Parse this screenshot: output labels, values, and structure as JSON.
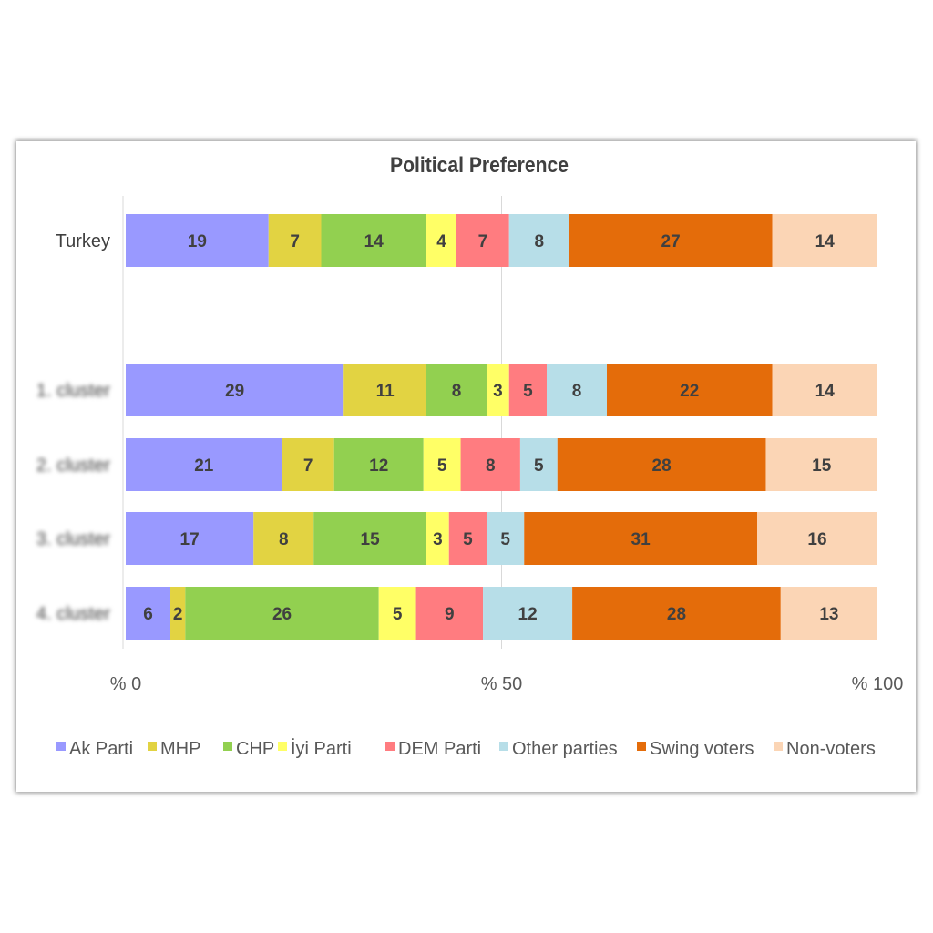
{
  "chart_data": {
    "type": "bar",
    "orientation": "horizontal",
    "stacked": "percent",
    "title": "Political Preference",
    "categories": [
      "Turkey",
      "",
      "1. cluster",
      "2. cluster",
      "3. cluster",
      "4. cluster"
    ],
    "blurred_categories": [
      "1. cluster",
      "2. cluster",
      "3. cluster",
      "4. cluster"
    ],
    "xlim": [
      0,
      100
    ],
    "x_ticks": [
      0,
      50,
      100
    ],
    "x_tick_labels": [
      "% 0",
      "% 50",
      "% 100"
    ],
    "grid": "vertical at 50",
    "legend_position": "bottom",
    "series": [
      {
        "name": "Ak Parti",
        "color": "#9999FF",
        "values": [
          19,
          null,
          29,
          21,
          17,
          6
        ]
      },
      {
        "name": "MHP",
        "color": "#E2D342",
        "values": [
          7,
          null,
          11,
          7,
          8,
          2
        ]
      },
      {
        "name": "CHP",
        "color": "#92D050",
        "values": [
          14,
          null,
          8,
          12,
          15,
          26
        ]
      },
      {
        "name": "İyi Parti",
        "color": "#FFFF66",
        "values": [
          4,
          null,
          3,
          5,
          3,
          5
        ]
      },
      {
        "name": "DEM Parti",
        "color": "#FF7C80",
        "values": [
          7,
          null,
          5,
          8,
          5,
          9
        ]
      },
      {
        "name": "Other parties",
        "color": "#B7DEE8",
        "values": [
          8,
          null,
          8,
          5,
          5,
          12
        ]
      },
      {
        "name": "Swing voters",
        "color": "#E46C0A",
        "values": [
          27,
          null,
          22,
          28,
          31,
          28
        ]
      },
      {
        "name": "Non-voters",
        "color": "#FBD5B5",
        "values": [
          14,
          null,
          14,
          15,
          16,
          13
        ]
      }
    ]
  }
}
